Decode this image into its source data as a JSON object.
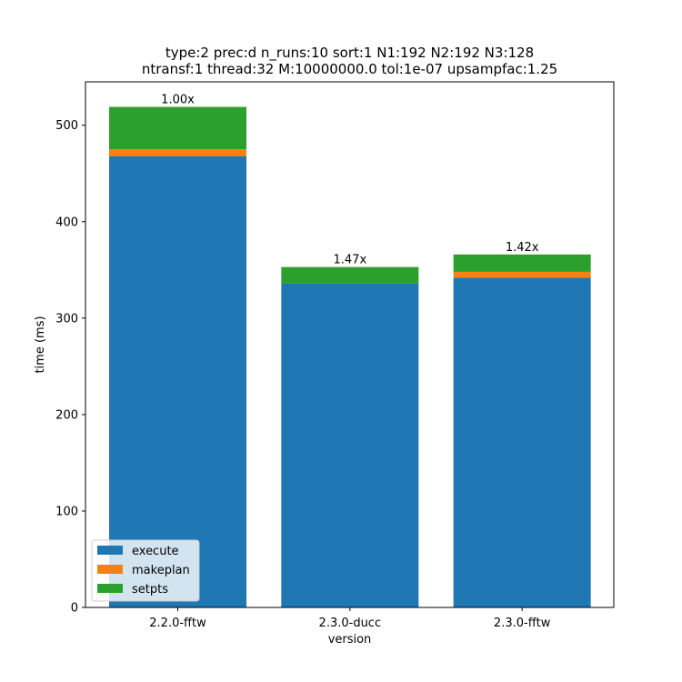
{
  "chart_data": {
    "type": "bar",
    "title": "type:2 prec:d n_runs:10 sort:1 N1:192 N2:192 N3:128\nntransf:1 thread:32 M:10000000.0 tol:1e-07 upsampfac:1.25",
    "title_lines": [
      "type:2 prec:d n_runs:10 sort:1 N1:192 N2:192 N3:128",
      "ntransf:1 thread:32 M:10000000.0 tol:1e-07 upsampfac:1.25"
    ],
    "xlabel": "version",
    "ylabel": "time (ms)",
    "categories": [
      "2.2.0-fftw",
      "2.3.0-ducc",
      "2.3.0-fftw"
    ],
    "stacked": true,
    "series": [
      {
        "name": "execute",
        "color": "#1f77b4",
        "values": [
          468,
          336,
          342
        ]
      },
      {
        "name": "makeplan",
        "color": "#ff7f0e",
        "values": [
          7,
          0,
          6
        ]
      },
      {
        "name": "setpts",
        "color": "#2ca02c",
        "values": [
          44,
          17,
          18
        ]
      }
    ],
    "bar_labels": [
      "1.00x",
      "1.47x",
      "1.42x"
    ],
    "ylim": [
      0,
      545
    ],
    "yticks": [
      0,
      100,
      200,
      300,
      400,
      500
    ],
    "grid": false,
    "legend": "lower-left"
  }
}
